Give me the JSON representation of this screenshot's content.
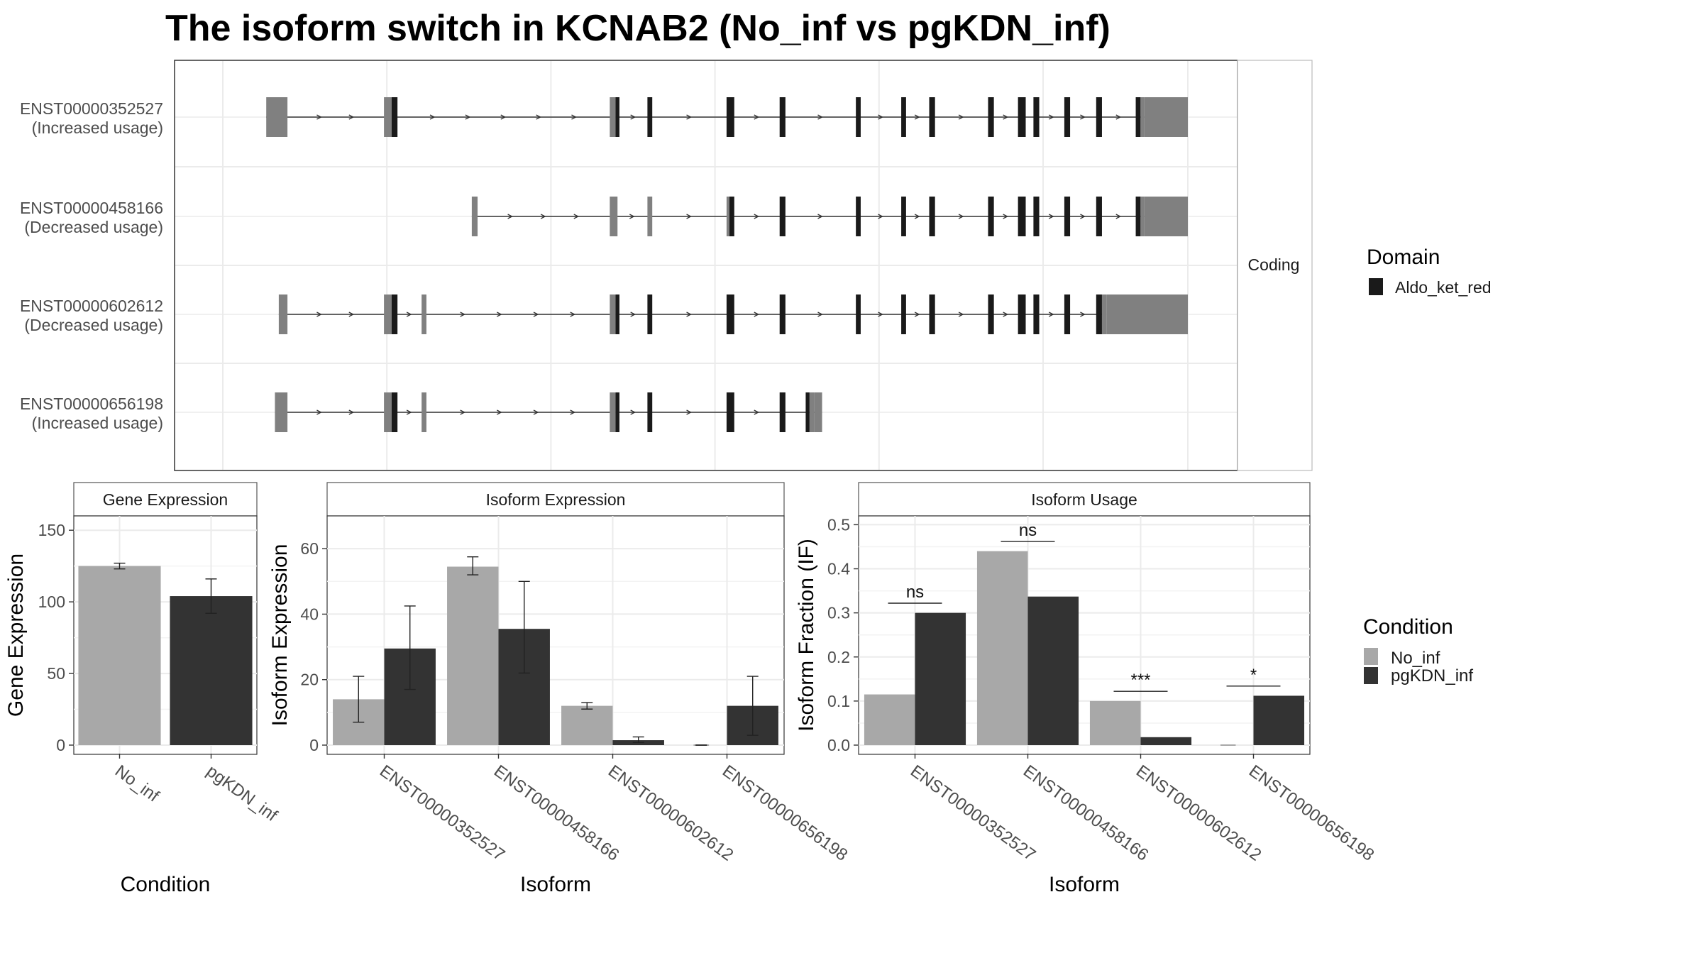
{
  "title": "The isoform switch in KCNAB2 (No_inf vs pgKDN_inf)",
  "colors": {
    "no_inf": "#a8a8a8",
    "pgkdn_inf": "#333333",
    "domain": "#1a1a1a",
    "utr": "#808080",
    "grid": "#ebebeb",
    "border": "#555555"
  },
  "chart_data": [
    {
      "type": "gene_structure",
      "strip_label": "Coding",
      "legend_title": "Domain",
      "legend_items": [
        {
          "label": "Aldo_ket_red",
          "color": "#1a1a1a"
        }
      ],
      "xlim": [
        0,
        1
      ],
      "isoforms": [
        {
          "id": "ENST00000352527",
          "usage": "(Increased usage)",
          "span": [
            0.045,
            0.955
          ],
          "exons": [
            {
              "x": [
                0.045,
                0.067
              ],
              "kind": "utr"
            },
            {
              "x": [
                0.167,
                0.175
              ],
              "kind": "utr"
            },
            {
              "x": [
                0.175,
                0.181
              ],
              "kind": "domain"
            },
            {
              "x": [
                0.401,
                0.407
              ],
              "kind": "utr"
            },
            {
              "x": [
                0.407,
                0.411
              ],
              "kind": "domain"
            },
            {
              "x": [
                0.44,
                0.445
              ],
              "kind": "domain"
            },
            {
              "x": [
                0.522,
                0.53
              ],
              "kind": "domain"
            },
            {
              "x": [
                0.577,
                0.583
              ],
              "kind": "domain"
            },
            {
              "x": [
                0.656,
                0.661
              ],
              "kind": "domain"
            },
            {
              "x": [
                0.703,
                0.708
              ],
              "kind": "domain"
            },
            {
              "x": [
                0.732,
                0.738
              ],
              "kind": "domain"
            },
            {
              "x": [
                0.793,
                0.799
              ],
              "kind": "domain"
            },
            {
              "x": [
                0.824,
                0.832
              ],
              "kind": "domain"
            },
            {
              "x": [
                0.84,
                0.846
              ],
              "kind": "domain"
            },
            {
              "x": [
                0.872,
                0.878
              ],
              "kind": "domain"
            },
            {
              "x": [
                0.905,
                0.911
              ],
              "kind": "domain"
            },
            {
              "x": [
                0.946,
                0.951
              ],
              "kind": "domain"
            },
            {
              "x": [
                0.951,
                0.955
              ],
              "kind": "utr"
            },
            {
              "x": [
                0.955,
                1.0
              ],
              "kind": "utr_wide"
            }
          ]
        },
        {
          "id": "ENST00000458166",
          "usage": "(Decreased usage)",
          "span": [
            0.258,
            0.955
          ],
          "exons": [
            {
              "x": [
                0.258,
                0.264
              ],
              "kind": "utr"
            },
            {
              "x": [
                0.401,
                0.409
              ],
              "kind": "utr"
            },
            {
              "x": [
                0.44,
                0.445
              ],
              "kind": "utr"
            },
            {
              "x": [
                0.522,
                0.525
              ],
              "kind": "utr"
            },
            {
              "x": [
                0.525,
                0.53
              ],
              "kind": "domain"
            },
            {
              "x": [
                0.577,
                0.583
              ],
              "kind": "domain"
            },
            {
              "x": [
                0.656,
                0.661
              ],
              "kind": "domain"
            },
            {
              "x": [
                0.703,
                0.708
              ],
              "kind": "domain"
            },
            {
              "x": [
                0.732,
                0.738
              ],
              "kind": "domain"
            },
            {
              "x": [
                0.793,
                0.799
              ],
              "kind": "domain"
            },
            {
              "x": [
                0.824,
                0.832
              ],
              "kind": "domain"
            },
            {
              "x": [
                0.84,
                0.846
              ],
              "kind": "domain"
            },
            {
              "x": [
                0.872,
                0.878
              ],
              "kind": "domain"
            },
            {
              "x": [
                0.905,
                0.911
              ],
              "kind": "domain"
            },
            {
              "x": [
                0.946,
                0.951
              ],
              "kind": "domain"
            },
            {
              "x": [
                0.951,
                0.955
              ],
              "kind": "utr"
            },
            {
              "x": [
                0.955,
                1.0
              ],
              "kind": "utr_wide"
            }
          ]
        },
        {
          "id": "ENST00000602612",
          "usage": "(Decreased usage)",
          "span": [
            0.058,
            0.915
          ],
          "exons": [
            {
              "x": [
                0.058,
                0.067
              ],
              "kind": "utr"
            },
            {
              "x": [
                0.167,
                0.175
              ],
              "kind": "utr"
            },
            {
              "x": [
                0.175,
                0.181
              ],
              "kind": "domain"
            },
            {
              "x": [
                0.206,
                0.211
              ],
              "kind": "utr"
            },
            {
              "x": [
                0.401,
                0.407
              ],
              "kind": "utr"
            },
            {
              "x": [
                0.407,
                0.411
              ],
              "kind": "domain"
            },
            {
              "x": [
                0.44,
                0.445
              ],
              "kind": "domain"
            },
            {
              "x": [
                0.522,
                0.53
              ],
              "kind": "domain"
            },
            {
              "x": [
                0.577,
                0.583
              ],
              "kind": "domain"
            },
            {
              "x": [
                0.656,
                0.661
              ],
              "kind": "domain"
            },
            {
              "x": [
                0.703,
                0.708
              ],
              "kind": "domain"
            },
            {
              "x": [
                0.732,
                0.738
              ],
              "kind": "domain"
            },
            {
              "x": [
                0.793,
                0.799
              ],
              "kind": "domain"
            },
            {
              "x": [
                0.824,
                0.832
              ],
              "kind": "domain"
            },
            {
              "x": [
                0.84,
                0.846
              ],
              "kind": "domain"
            },
            {
              "x": [
                0.872,
                0.878
              ],
              "kind": "domain"
            },
            {
              "x": [
                0.905,
                0.911
              ],
              "kind": "domain"
            },
            {
              "x": [
                0.911,
                0.916
              ],
              "kind": "utr"
            },
            {
              "x": [
                0.916,
                1.0
              ],
              "kind": "utr_wide"
            }
          ]
        },
        {
          "id": "ENST00000656198",
          "usage": "(Increased usage)",
          "span": [
            0.054,
            0.621
          ],
          "exons": [
            {
              "x": [
                0.054,
                0.067
              ],
              "kind": "utr"
            },
            {
              "x": [
                0.167,
                0.175
              ],
              "kind": "utr"
            },
            {
              "x": [
                0.175,
                0.181
              ],
              "kind": "domain"
            },
            {
              "x": [
                0.206,
                0.211
              ],
              "kind": "utr"
            },
            {
              "x": [
                0.401,
                0.407
              ],
              "kind": "utr"
            },
            {
              "x": [
                0.407,
                0.411
              ],
              "kind": "domain"
            },
            {
              "x": [
                0.44,
                0.445
              ],
              "kind": "domain"
            },
            {
              "x": [
                0.522,
                0.53
              ],
              "kind": "domain"
            },
            {
              "x": [
                0.577,
                0.583
              ],
              "kind": "domain"
            },
            {
              "x": [
                0.604,
                0.608
              ],
              "kind": "domain"
            },
            {
              "x": [
                0.608,
                0.613
              ],
              "kind": "utr"
            },
            {
              "x": [
                0.613,
                0.621
              ],
              "kind": "utr_wide"
            }
          ]
        }
      ]
    },
    {
      "type": "bar",
      "strip_label": "Gene Expression",
      "xlabel": "Condition",
      "ylabel": "Gene Expression",
      "categories": [
        "No_inf",
        "pgKDN_inf"
      ],
      "values": [
        125,
        104
      ],
      "errors": [
        [
          123,
          127
        ],
        [
          92,
          116
        ]
      ],
      "ylim": [
        0,
        160
      ],
      "yticks": [
        0,
        50,
        100,
        150
      ]
    },
    {
      "type": "bar",
      "strip_label": "Isoform Expression",
      "xlabel": "Isoform",
      "ylabel": "Isoform Expression",
      "categories": [
        "ENST00000352527",
        "ENST00000458166",
        "ENST00000602612",
        "ENST00000656198"
      ],
      "ylim": [
        0,
        70
      ],
      "yticks": [
        0,
        20,
        40,
        60
      ],
      "series": [
        {
          "name": "No_inf",
          "values": [
            14,
            54.5,
            12,
            0
          ],
          "errors": [
            [
              7,
              21
            ],
            [
              52,
              57.5
            ],
            [
              11,
              13
            ],
            [
              0,
              0
            ]
          ]
        },
        {
          "name": "pgKDN_inf",
          "values": [
            29.5,
            35.5,
            1.5,
            12
          ],
          "errors": [
            [
              17,
              42.5
            ],
            [
              22,
              50
            ],
            [
              0.8,
              2.5
            ],
            [
              3,
              21
            ]
          ]
        }
      ]
    },
    {
      "type": "bar",
      "strip_label": "Isoform Usage",
      "xlabel": "Isoform",
      "ylabel": "Isoform Fraction (IF)",
      "categories": [
        "ENST00000352527",
        "ENST00000458166",
        "ENST00000602612",
        "ENST00000656198"
      ],
      "ylim": [
        0,
        0.52
      ],
      "yticks": [
        0.0,
        0.1,
        0.2,
        0.3,
        0.4,
        0.5
      ],
      "series": [
        {
          "name": "No_inf",
          "values": [
            0.115,
            0.44,
            0.1,
            0
          ]
        },
        {
          "name": "pgKDN_inf",
          "values": [
            0.3,
            0.337,
            0.018,
            0.112
          ]
        }
      ],
      "annotations": [
        {
          "label": "ns",
          "y": 0.322
        },
        {
          "label": "ns",
          "y": 0.462
        },
        {
          "label": "***",
          "y": 0.122
        },
        {
          "label": "*",
          "y": 0.134
        }
      ]
    }
  ],
  "condition_legend": {
    "title": "Condition",
    "items": [
      {
        "label": "No_inf",
        "color": "#a8a8a8"
      },
      {
        "label": "pgKDN_inf",
        "color": "#333333"
      }
    ]
  }
}
